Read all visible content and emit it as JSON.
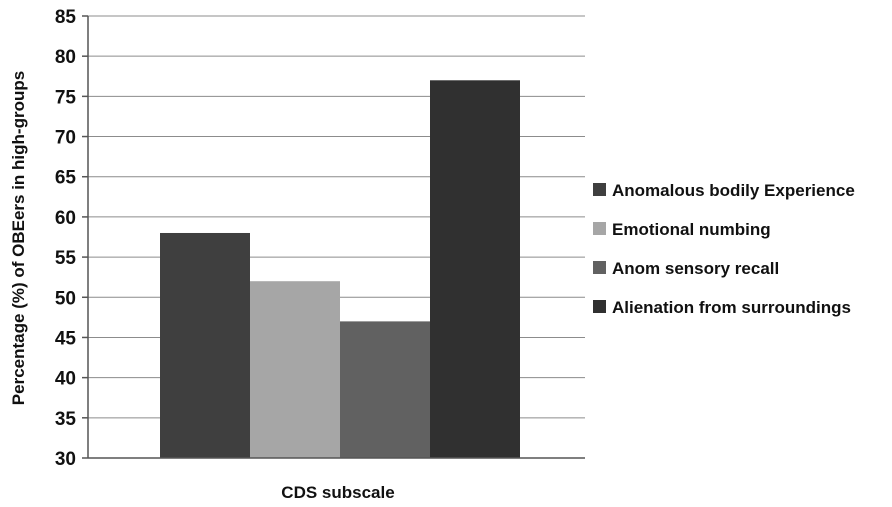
{
  "chart_data": {
    "type": "bar",
    "title": "",
    "xlabel": "CDS subscale",
    "ylabel": "Percentage (%)  of OBEers in high-groups",
    "ylim": [
      30,
      85
    ],
    "yticks": [
      30,
      35,
      40,
      45,
      50,
      55,
      60,
      65,
      70,
      75,
      80,
      85
    ],
    "grid": true,
    "legend_position": "right",
    "categories": [
      "CDS subscale"
    ],
    "series": [
      {
        "name": "Anomalous bodily Experience",
        "values": [
          58
        ],
        "color": "#3f3f3f"
      },
      {
        "name": "Emotional numbing",
        "values": [
          52
        ],
        "color": "#a6a6a6"
      },
      {
        "name": "Anom sensory recall",
        "values": [
          47
        ],
        "color": "#616161"
      },
      {
        "name": "Alienation from surroundings",
        "values": [
          77
        ],
        "color": "#303030"
      }
    ]
  }
}
